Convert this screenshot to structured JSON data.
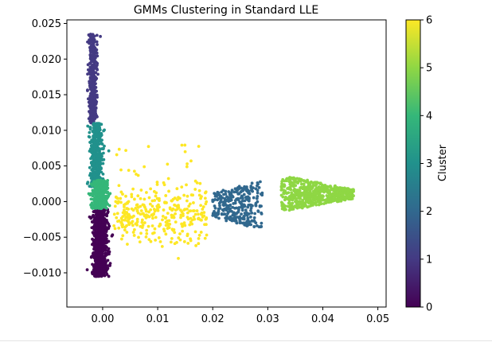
{
  "chart_data": {
    "type": "scatter",
    "title": "GMMs Clustering in Standard LLE",
    "xlabel": "",
    "ylabel": "",
    "xlim": [
      -0.0065,
      0.0515
    ],
    "ylim": [
      -0.0148,
      0.0255
    ],
    "x_ticks": [
      0.0,
      0.01,
      0.02,
      0.03,
      0.04,
      0.05
    ],
    "x_tick_labels": [
      "0.00",
      "0.01",
      "0.02",
      "0.03",
      "0.04",
      "0.05"
    ],
    "y_ticks": [
      -0.01,
      -0.005,
      0.0,
      0.005,
      0.01,
      0.015,
      0.02,
      0.025
    ],
    "y_tick_labels": [
      "−0.010",
      "−0.005",
      "0.000",
      "0.005",
      "0.010",
      "0.015",
      "0.020",
      "0.025"
    ],
    "colorbar": {
      "label": "Cluster",
      "range": [
        0,
        6
      ],
      "ticks": [
        0,
        1,
        2,
        3,
        4,
        5,
        6
      ],
      "tick_labels": [
        "0",
        "1",
        "2",
        "3",
        "4",
        "5",
        "6"
      ],
      "colormap_stops": [
        "#440154",
        "#443a83",
        "#31688e",
        "#21918c",
        "#35b779",
        "#8fd744",
        "#fde725"
      ]
    },
    "clusters": [
      {
        "cluster": 0,
        "color": "#440154",
        "x_center": -0.0005,
        "x_spread": 0.0011,
        "y_min": -0.0105,
        "y_max": -0.0005,
        "approx_points": 900
      },
      {
        "cluster": 1,
        "color": "#443a83",
        "x_center": -0.0018,
        "x_spread": 0.0006,
        "y_min": 0.011,
        "y_max": 0.0235,
        "approx_points": 400
      },
      {
        "cluster": 2,
        "color": "#31688e",
        "x_center": 0.0245,
        "x_spread": 0.0045,
        "y_min": -0.004,
        "y_max": 0.0035,
        "approx_points": 300
      },
      {
        "cluster": 3,
        "color": "#21918c",
        "x_center": -0.0012,
        "x_spread": 0.0009,
        "y_min": 0.002,
        "y_max": 0.011,
        "approx_points": 500
      },
      {
        "cluster": 4,
        "color": "#35b779",
        "x_center": -0.0005,
        "x_spread": 0.0012,
        "y_min": -0.001,
        "y_max": 0.003,
        "approx_points": 350
      },
      {
        "cluster": 5,
        "color": "#8fd744",
        "x_center": 0.037,
        "x_spread": 0.006,
        "y_min": -0.002,
        "y_max": 0.0035,
        "approx_points": 600
      },
      {
        "cluster": 6,
        "color": "#fde725",
        "x_center": 0.011,
        "x_spread": 0.008,
        "y_min": -0.006,
        "y_max": 0.0085,
        "approx_points": 350
      }
    ]
  }
}
